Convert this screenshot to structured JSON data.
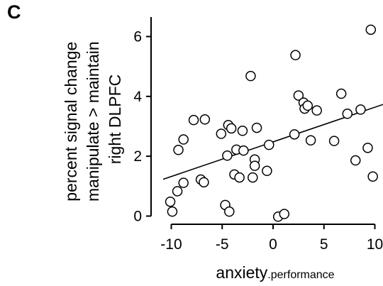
{
  "panel_label": "C",
  "chart_data": {
    "type": "scatter",
    "xlabel_main": "anxiety",
    "xlabel_sub": ".performance",
    "ylabel_lines": [
      "percent signal change",
      "manipulate > maintain",
      "right DLPFC"
    ],
    "xlim": [
      -10.8,
      10.8
    ],
    "ylim": [
      -0.25,
      6.7
    ],
    "xticks": [
      -10,
      -5,
      0,
      5,
      10
    ],
    "yticks": [
      0,
      2,
      4,
      6
    ],
    "grid": false,
    "regression_line": {
      "x1": -10.8,
      "y1": 1.23,
      "x2": 10.8,
      "y2": 3.73
    },
    "points": [
      {
        "x": -10.1,
        "y": 0.48
      },
      {
        "x": -9.9,
        "y": 0.15
      },
      {
        "x": -9.4,
        "y": 0.83
      },
      {
        "x": -9.3,
        "y": 2.21
      },
      {
        "x": -8.8,
        "y": 1.11
      },
      {
        "x": -8.8,
        "y": 2.56
      },
      {
        "x": -7.8,
        "y": 3.21
      },
      {
        "x": -7.1,
        "y": 1.22
      },
      {
        "x": -6.8,
        "y": 1.13
      },
      {
        "x": -6.7,
        "y": 3.23
      },
      {
        "x": -5.1,
        "y": 2.75
      },
      {
        "x": -4.7,
        "y": 0.37
      },
      {
        "x": -4.3,
        "y": 0.15
      },
      {
        "x": -4.5,
        "y": 2.02
      },
      {
        "x": -4.4,
        "y": 3.04
      },
      {
        "x": -4.1,
        "y": 2.93
      },
      {
        "x": -3.8,
        "y": 1.39
      },
      {
        "x": -3.6,
        "y": 2.22
      },
      {
        "x": -3.3,
        "y": 1.29
      },
      {
        "x": -3.0,
        "y": 2.85
      },
      {
        "x": -2.9,
        "y": 2.19
      },
      {
        "x": -2.2,
        "y": 4.68
      },
      {
        "x": -2.0,
        "y": 1.29
      },
      {
        "x": -1.8,
        "y": 1.89
      },
      {
        "x": -1.8,
        "y": 1.68
      },
      {
        "x": -1.6,
        "y": 2.95
      },
      {
        "x": -0.6,
        "y": 1.51
      },
      {
        "x": -0.4,
        "y": 2.38
      },
      {
        "x": 0.5,
        "y": -0.02
      },
      {
        "x": 1.1,
        "y": 0.07
      },
      {
        "x": 2.2,
        "y": 5.38
      },
      {
        "x": 2.5,
        "y": 4.03
      },
      {
        "x": 2.1,
        "y": 2.73
      },
      {
        "x": 3.0,
        "y": 3.79
      },
      {
        "x": 3.1,
        "y": 3.59
      },
      {
        "x": 3.4,
        "y": 3.69
      },
      {
        "x": 3.7,
        "y": 2.53
      },
      {
        "x": 4.3,
        "y": 3.53
      },
      {
        "x": 6.0,
        "y": 2.51
      },
      {
        "x": 6.7,
        "y": 4.09
      },
      {
        "x": 7.3,
        "y": 3.42
      },
      {
        "x": 8.1,
        "y": 1.86
      },
      {
        "x": 8.6,
        "y": 3.56
      },
      {
        "x": 9.3,
        "y": 2.28
      },
      {
        "x": 9.6,
        "y": 6.23
      },
      {
        "x": 9.8,
        "y": 1.32
      }
    ]
  },
  "colors": {
    "ink": "#000000",
    "marker_fill": "#ffffff"
  }
}
